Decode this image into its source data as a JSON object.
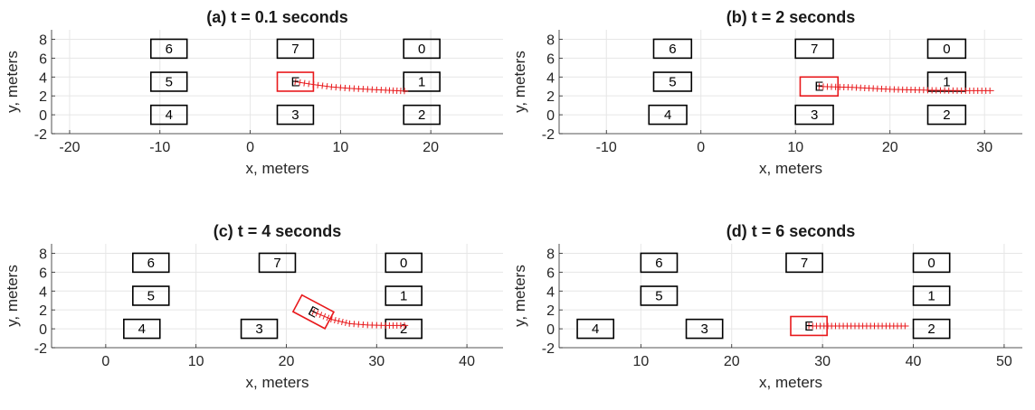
{
  "chart_data": [
    {
      "type": "scatter",
      "title": "(a) t = 0.1 seconds",
      "xlabel": "x, meters",
      "ylabel": "y, meters",
      "xlim": [
        -22,
        28
      ],
      "ylim": [
        -2,
        9
      ],
      "xticks": [
        -20,
        -10,
        0,
        10,
        20
      ],
      "yticks": [
        -2,
        0,
        2,
        4,
        6,
        8
      ],
      "grid": true,
      "obstacles": [
        {
          "label": "6",
          "x": -9,
          "y": 7
        },
        {
          "label": "7",
          "x": 5,
          "y": 7
        },
        {
          "label": "0",
          "x": 19,
          "y": 7
        },
        {
          "label": "5",
          "x": -9,
          "y": 3.5
        },
        {
          "label": "1",
          "x": 19,
          "y": 3.5
        },
        {
          "label": "4",
          "x": -9,
          "y": 0
        },
        {
          "label": "3",
          "x": 5,
          "y": 0
        },
        {
          "label": "2",
          "x": 19,
          "y": 0
        }
      ],
      "ego": {
        "label": "E",
        "x": 5,
        "y": 3.5,
        "heading_deg": 0
      },
      "trajectory": {
        "x": [
          5,
          7,
          9,
          11,
          13,
          15,
          17.5
        ],
        "y": [
          3.5,
          3.2,
          2.95,
          2.8,
          2.7,
          2.6,
          2.5
        ]
      }
    },
    {
      "type": "scatter",
      "title": "(b) t = 2 seconds",
      "xlabel": "x, meters",
      "ylabel": "y, meters",
      "xlim": [
        -15,
        34
      ],
      "ylim": [
        -2,
        9
      ],
      "xticks": [
        -10,
        0,
        10,
        20,
        30
      ],
      "yticks": [
        -2,
        0,
        2,
        4,
        6,
        8
      ],
      "grid": true,
      "obstacles": [
        {
          "label": "6",
          "x": -3,
          "y": 7
        },
        {
          "label": "7",
          "x": 12,
          "y": 7
        },
        {
          "label": "0",
          "x": 26,
          "y": 7
        },
        {
          "label": "5",
          "x": -3,
          "y": 3.5
        },
        {
          "label": "1",
          "x": 26,
          "y": 3.5
        },
        {
          "label": "4",
          "x": -3.5,
          "y": 0
        },
        {
          "label": "3",
          "x": 12,
          "y": 0
        },
        {
          "label": "2",
          "x": 26,
          "y": 0
        }
      ],
      "ego": {
        "label": "E",
        "x": 12.5,
        "y": 3,
        "heading_deg": 0
      },
      "trajectory": {
        "x": [
          12.5,
          16,
          20,
          24,
          28,
          31
        ],
        "y": [
          3,
          2.9,
          2.7,
          2.6,
          2.55,
          2.55
        ]
      }
    },
    {
      "type": "scatter",
      "title": "(c) t = 4 seconds",
      "xlabel": "x, meters",
      "ylabel": "y, meters",
      "xlim": [
        -6,
        44
      ],
      "ylim": [
        -2,
        9
      ],
      "xticks": [
        0,
        10,
        20,
        30,
        40
      ],
      "yticks": [
        -2,
        0,
        2,
        4,
        6,
        8
      ],
      "grid": true,
      "obstacles": [
        {
          "label": "6",
          "x": 5,
          "y": 7
        },
        {
          "label": "7",
          "x": 19,
          "y": 7
        },
        {
          "label": "0",
          "x": 33,
          "y": 7
        },
        {
          "label": "5",
          "x": 5,
          "y": 3.5
        },
        {
          "label": "1",
          "x": 33,
          "y": 3.5
        },
        {
          "label": "4",
          "x": 4,
          "y": 0
        },
        {
          "label": "3",
          "x": 17,
          "y": 0
        },
        {
          "label": "2",
          "x": 33,
          "y": 0
        }
      ],
      "ego": {
        "label": "E",
        "x": 23,
        "y": 1.8,
        "heading_deg": -28
      },
      "trajectory": {
        "x": [
          23,
          25,
          27,
          29,
          31,
          33.5
        ],
        "y": [
          1.8,
          1.0,
          0.55,
          0.4,
          0.35,
          0.35
        ]
      }
    },
    {
      "type": "scatter",
      "title": "(d) t = 6 seconds",
      "xlabel": "x, meters",
      "ylabel": "y, meters",
      "xlim": [
        1,
        52
      ],
      "ylim": [
        -2,
        9
      ],
      "xticks": [
        10,
        20,
        30,
        40,
        50
      ],
      "yticks": [
        -2,
        0,
        2,
        4,
        6,
        8
      ],
      "grid": true,
      "obstacles": [
        {
          "label": "6",
          "x": 12,
          "y": 7
        },
        {
          "label": "7",
          "x": 28,
          "y": 7
        },
        {
          "label": "0",
          "x": 42,
          "y": 7
        },
        {
          "label": "5",
          "x": 12,
          "y": 3.5
        },
        {
          "label": "1",
          "x": 42,
          "y": 3.5
        },
        {
          "label": "4",
          "x": 5,
          "y": 0
        },
        {
          "label": "3",
          "x": 17,
          "y": 0
        },
        {
          "label": "2",
          "x": 42,
          "y": 0
        }
      ],
      "ego": {
        "label": "E",
        "x": 28.5,
        "y": 0.3,
        "heading_deg": 0
      },
      "trajectory": {
        "x": [
          28.5,
          31,
          34,
          37,
          39.5
        ],
        "y": [
          0.3,
          0.3,
          0.3,
          0.3,
          0.3
        ]
      }
    }
  ]
}
